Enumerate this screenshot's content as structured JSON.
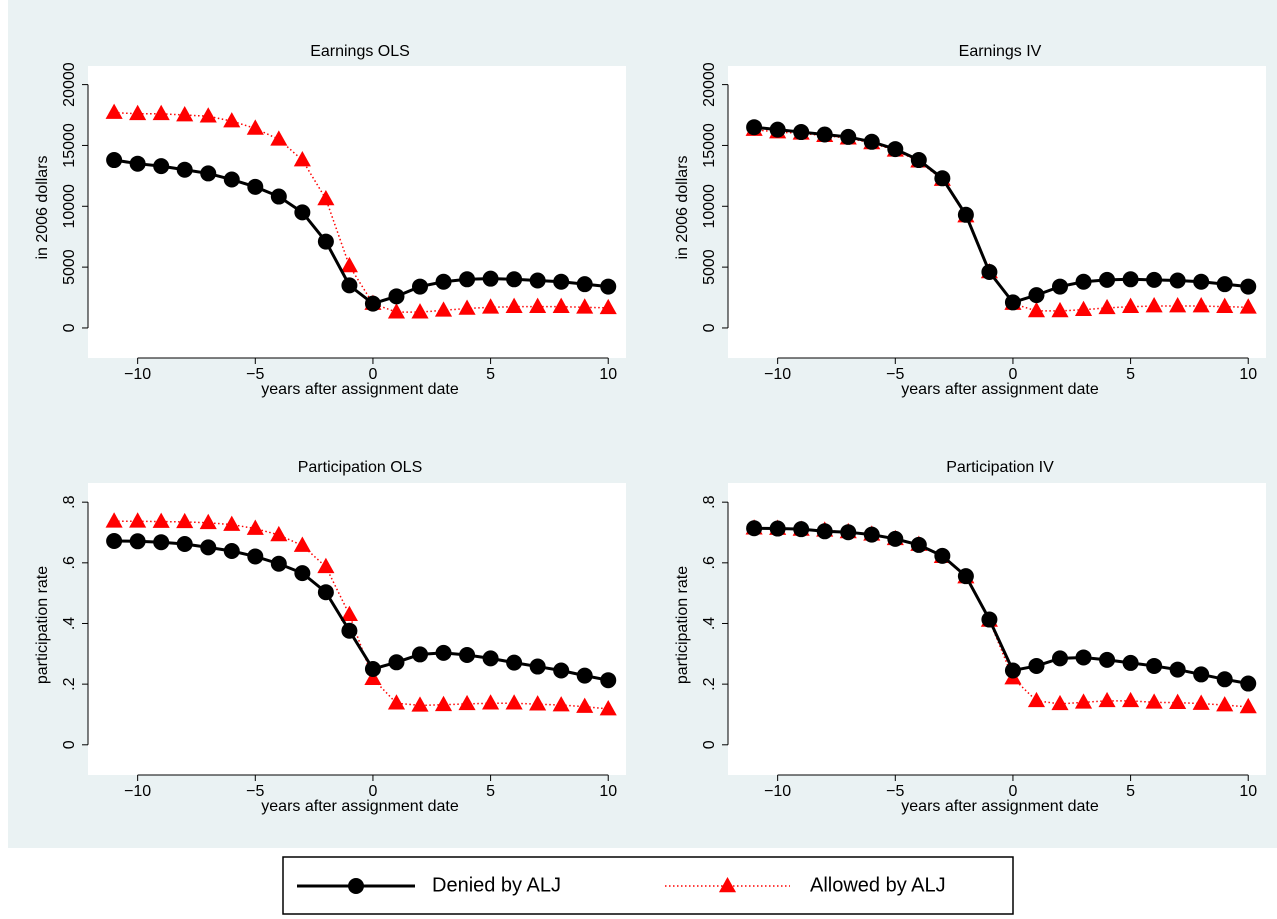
{
  "chart_data": [
    {
      "type": "line",
      "title": "Earnings OLS",
      "xlabel": "years after assignment date",
      "ylabel": "in 2006 dollars",
      "x": [
        -11,
        -10,
        -9,
        -8,
        -7,
        -6,
        -5,
        -4,
        -3,
        -2,
        -1,
        0,
        1,
        2,
        3,
        4,
        5,
        6,
        7,
        8,
        9,
        10
      ],
      "series": [
        {
          "name": "Denied by ALJ",
          "color": "#000000",
          "marker": "circle",
          "dash": "solid",
          "values": [
            13800,
            13500,
            13300,
            13000,
            12700,
            12200,
            11600,
            10800,
            9500,
            7100,
            3500,
            2000,
            2600,
            3400,
            3800,
            4000,
            4050,
            4000,
            3900,
            3800,
            3600,
            3400
          ]
        },
        {
          "name": "Allowed by ALJ",
          "color": "#ff0000",
          "marker": "triangle",
          "dash": "dotted",
          "values": [
            17700,
            17600,
            17600,
            17500,
            17400,
            17000,
            16400,
            15500,
            13800,
            10600,
            5100,
            2000,
            1300,
            1300,
            1450,
            1600,
            1700,
            1750,
            1750,
            1750,
            1700,
            1650
          ]
        }
      ],
      "xlim": [
        -11.6,
        10.5
      ],
      "ylim": [
        -1400,
        21200
      ],
      "xticks": [
        {
          "value": -10,
          "label": "−10"
        },
        {
          "value": -5,
          "label": "−5"
        },
        0,
        5,
        10
      ],
      "yticks": [
        0,
        5000,
        10000,
        15000,
        20000
      ]
    },
    {
      "type": "line",
      "title": "Earnings IV",
      "xlabel": "years after assignment date",
      "ylabel": "in 2006 dollars",
      "x": [
        -11,
        -10,
        -9,
        -8,
        -7,
        -6,
        -5,
        -4,
        -3,
        -2,
        -1,
        0,
        1,
        2,
        3,
        4,
        5,
        6,
        7,
        8,
        9,
        10
      ],
      "series": [
        {
          "color": "#000000",
          "marker": "circle",
          "dash": "solid",
          "values": [
            16500,
            16300,
            16100,
            15900,
            15700,
            15300,
            14700,
            13800,
            12300,
            9300,
            4600,
            2100,
            2700,
            3400,
            3800,
            3950,
            4000,
            3950,
            3900,
            3800,
            3600,
            3400
          ]
        },
        {
          "color": "#ff0000",
          "marker": "triangle",
          "dash": "dotted",
          "values": [
            16300,
            16100,
            16000,
            15800,
            15600,
            15200,
            14600,
            13700,
            12200,
            9200,
            4600,
            2000,
            1400,
            1400,
            1500,
            1650,
            1750,
            1800,
            1800,
            1800,
            1750,
            1700
          ]
        }
      ],
      "xlim": [
        -11.6,
        10.5
      ],
      "ylim": [
        -1400,
        21200
      ],
      "xticks": [
        {
          "value": -10,
          "label": "−10"
        },
        {
          "value": -5,
          "label": "−5"
        },
        0,
        5,
        10
      ],
      "yticks": [
        0,
        5000,
        10000,
        15000,
        20000
      ]
    },
    {
      "type": "line",
      "title": "Participation OLS",
      "xlabel": "years after assignment date",
      "ylabel": "participation rate",
      "x": [
        -11,
        -10,
        -9,
        -8,
        -7,
        -6,
        -5,
        -4,
        -3,
        -2,
        -1,
        0,
        1,
        2,
        3,
        4,
        5,
        6,
        7,
        8,
        9,
        10
      ],
      "series": [
        {
          "color": "#000000",
          "marker": "circle",
          "dash": "solid",
          "values": [
            0.672,
            0.671,
            0.668,
            0.662,
            0.651,
            0.639,
            0.621,
            0.597,
            0.566,
            0.503,
            0.376,
            0.25,
            0.272,
            0.298,
            0.303,
            0.296,
            0.285,
            0.271,
            0.258,
            0.245,
            0.228,
            0.213
          ]
        },
        {
          "color": "#ff0000",
          "marker": "triangle",
          "dash": "dotted",
          "values": [
            0.737,
            0.737,
            0.736,
            0.735,
            0.732,
            0.726,
            0.713,
            0.692,
            0.657,
            0.587,
            0.429,
            0.218,
            0.137,
            0.13,
            0.132,
            0.135,
            0.137,
            0.137,
            0.134,
            0.131,
            0.126,
            0.118
          ]
        }
      ],
      "xlim": [
        -11.6,
        10.5
      ],
      "ylim": [
        -0.06,
        0.85
      ],
      "xticks": [
        {
          "value": -10,
          "label": "−10"
        },
        {
          "value": -5,
          "label": "−5"
        },
        0,
        5,
        10
      ],
      "yticks": [
        0,
        {
          "value": 0.2,
          "label": ".2"
        },
        {
          "value": 0.4,
          "label": ".4"
        },
        {
          "value": 0.6,
          "label": ".6"
        },
        {
          "value": 0.8,
          "label": ".8"
        }
      ]
    },
    {
      "type": "line",
      "title": "Participation IV",
      "xlabel": "years after assignment date",
      "ylabel": "participation rate",
      "x": [
        -11,
        -10,
        -9,
        -8,
        -7,
        -6,
        -5,
        -4,
        -3,
        -2,
        -1,
        0,
        1,
        2,
        3,
        4,
        5,
        6,
        7,
        8,
        9,
        10
      ],
      "series": [
        {
          "color": "#000000",
          "marker": "circle",
          "dash": "solid",
          "values": [
            0.714,
            0.713,
            0.711,
            0.704,
            0.701,
            0.693,
            0.679,
            0.659,
            0.623,
            0.556,
            0.413,
            0.245,
            0.26,
            0.285,
            0.288,
            0.28,
            0.27,
            0.26,
            0.248,
            0.232,
            0.216,
            0.202
          ]
        },
        {
          "color": "#ff0000",
          "marker": "triangle",
          "dash": "dotted",
          "values": [
            0.714,
            0.713,
            0.71,
            0.707,
            0.702,
            0.694,
            0.679,
            0.66,
            0.62,
            0.553,
            0.41,
            0.22,
            0.145,
            0.135,
            0.14,
            0.145,
            0.145,
            0.14,
            0.139,
            0.136,
            0.131,
            0.125
          ]
        }
      ],
      "xlim": [
        -11.6,
        10.5
      ],
      "ylim": [
        -0.06,
        0.85
      ],
      "xticks": [
        {
          "value": -10,
          "label": "−10"
        },
        {
          "value": -5,
          "label": "−5"
        },
        0,
        5,
        10
      ],
      "yticks": [
        0,
        {
          "value": 0.2,
          "label": ".2"
        },
        {
          "value": 0.4,
          "label": ".4"
        },
        {
          "value": 0.6,
          "label": ".6"
        },
        {
          "value": 0.8,
          "label": ".8"
        }
      ]
    }
  ]
}
